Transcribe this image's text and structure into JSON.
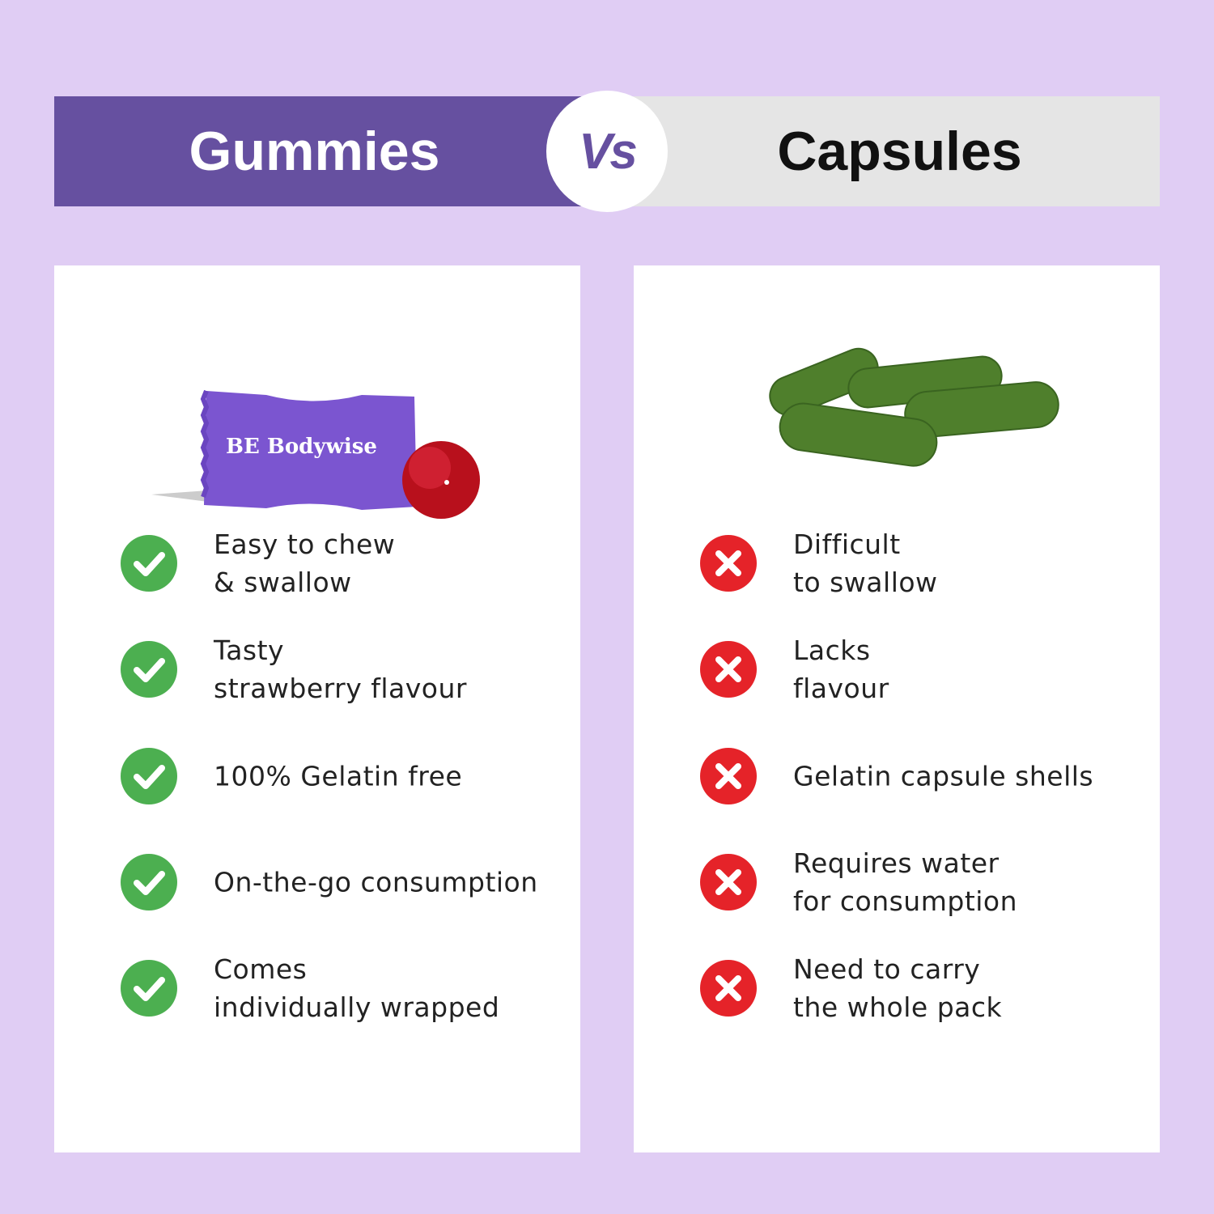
{
  "header": {
    "left_title": "Gummies",
    "vs_label": "Vs",
    "right_title": "Capsules"
  },
  "colors": {
    "purple": "#6650a0",
    "background": "#e0cdf4",
    "check_green": "#4caf50",
    "cross_red": "#e52329"
  },
  "gummies": {
    "product_brand": "BE Bodywise",
    "items": [
      {
        "icon": "check-icon",
        "text": "Easy to chew\n& swallow"
      },
      {
        "icon": "check-icon",
        "text": "Tasty\nstrawberry flavour"
      },
      {
        "icon": "check-icon",
        "text": "100% Gelatin free"
      },
      {
        "icon": "check-icon",
        "text": "On-the-go consumption"
      },
      {
        "icon": "check-icon",
        "text": "Comes\nindividually wrapped"
      }
    ]
  },
  "capsules": {
    "items": [
      {
        "icon": "cross-icon",
        "text": "Difficult\nto swallow"
      },
      {
        "icon": "cross-icon",
        "text": "Lacks\nflavour"
      },
      {
        "icon": "cross-icon",
        "text": "Gelatin capsule shells"
      },
      {
        "icon": "cross-icon",
        "text": "Requires water\nfor consumption"
      },
      {
        "icon": "cross-icon",
        "text": "Need to carry\nthe whole pack"
      }
    ]
  }
}
